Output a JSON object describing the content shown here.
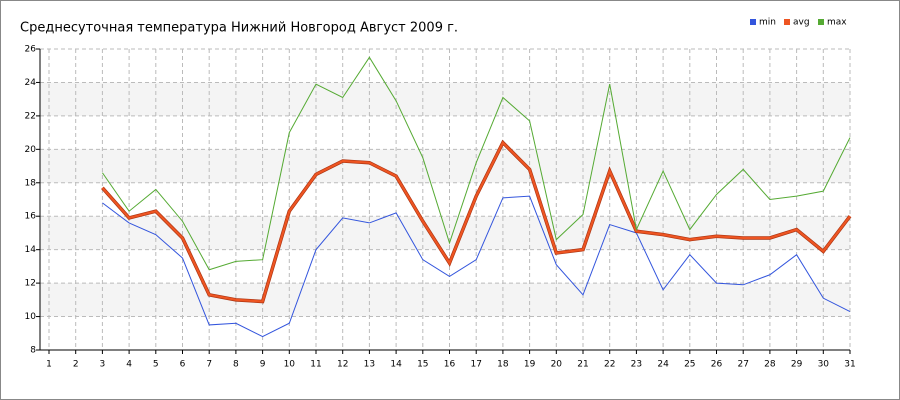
{
  "chart_data": {
    "type": "line",
    "title": "Среднесуточная температура Нижний Новгород  Август 2009 г.",
    "x": [
      1,
      2,
      3,
      4,
      5,
      6,
      7,
      8,
      9,
      10,
      11,
      12,
      13,
      14,
      15,
      16,
      17,
      18,
      19,
      20,
      21,
      22,
      23,
      24,
      25,
      26,
      27,
      28,
      29,
      30,
      31
    ],
    "series": [
      {
        "name": "min",
        "color": "#3355dd",
        "values": [
          null,
          null,
          16.8,
          15.6,
          14.9,
          13.5,
          9.5,
          9.6,
          8.8,
          9.6,
          14.0,
          15.9,
          15.6,
          16.2,
          13.4,
          12.4,
          13.4,
          17.1,
          17.2,
          13.1,
          11.3,
          15.5,
          15.0,
          11.6,
          13.7,
          12.0,
          11.9,
          12.5,
          13.7,
          11.1,
          10.3
        ]
      },
      {
        "name": "avg",
        "color": "#ee5522",
        "values": [
          null,
          null,
          17.7,
          15.9,
          16.3,
          14.7,
          11.3,
          11.0,
          10.9,
          16.3,
          18.5,
          19.3,
          19.2,
          18.4,
          15.7,
          13.2,
          17.2,
          20.4,
          18.8,
          13.8,
          14.0,
          18.7,
          15.1,
          14.9,
          14.6,
          14.8,
          14.7,
          14.7,
          15.2,
          13.9,
          16.0
        ]
      },
      {
        "name": "max",
        "color": "#55aa33",
        "values": [
          null,
          null,
          18.6,
          16.3,
          17.6,
          15.7,
          12.8,
          13.3,
          13.4,
          21.0,
          23.9,
          23.1,
          25.5,
          22.9,
          19.5,
          14.4,
          19.2,
          23.1,
          21.7,
          14.6,
          16.1,
          23.9,
          15.2,
          18.7,
          15.2,
          17.3,
          18.8,
          17.0,
          17.2,
          17.5,
          20.7
        ]
      }
    ],
    "xlim": [
      1,
      31
    ],
    "xticks": [
      1,
      2,
      3,
      4,
      5,
      6,
      7,
      8,
      9,
      10,
      11,
      12,
      13,
      14,
      15,
      16,
      17,
      18,
      19,
      20,
      21,
      22,
      23,
      24,
      25,
      26,
      27,
      28,
      29,
      30,
      31
    ],
    "ylim": [
      8,
      26
    ],
    "yticks": [
      8,
      10,
      12,
      14,
      16,
      18,
      20,
      22,
      24,
      26
    ],
    "grid": true,
    "legend": "top-right"
  }
}
